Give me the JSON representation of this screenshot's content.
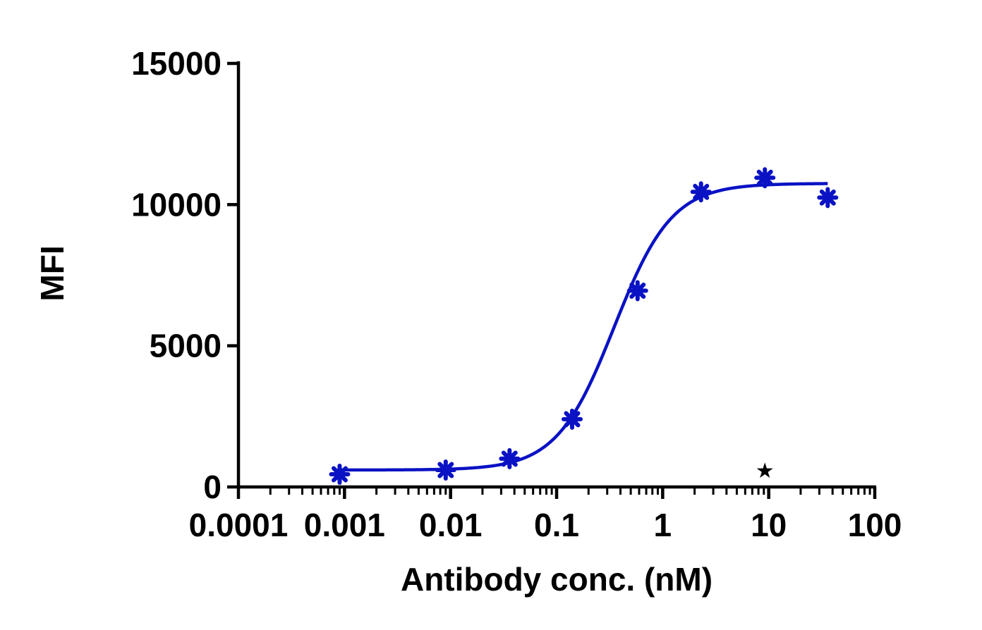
{
  "chart_data": {
    "type": "scatter",
    "title": "",
    "xlabel": "Antibody conc. (nM)",
    "ylabel": "MFI",
    "x_scale": "log",
    "xlim": [
      0.0001,
      100
    ],
    "ylim": [
      0,
      15000
    ],
    "x_ticks": [
      "0.0001",
      "0.001",
      "0.01",
      "0.1",
      "1",
      "10",
      "100"
    ],
    "y_ticks": [
      "0",
      "5000",
      "10000",
      "15000"
    ],
    "grid": false,
    "legend": "none",
    "series": [
      {
        "color": "#0a12c4",
        "marker": "asterisk",
        "x": [
          0.0009,
          0.009,
          0.036,
          0.14,
          0.58,
          2.3,
          9.2,
          36
        ],
        "y": [
          450,
          600,
          1000,
          2400,
          6950,
          10450,
          10950,
          10250
        ],
        "fit": {
          "model": "four-parameter logistic",
          "bottom": 600,
          "top": 10750,
          "ec50": 0.35,
          "hill": 1.6,
          "x_range": [
            0.0009,
            36
          ]
        }
      }
    ],
    "annotations": [
      {
        "text": "★",
        "x": 9.2,
        "y": 600
      }
    ]
  }
}
